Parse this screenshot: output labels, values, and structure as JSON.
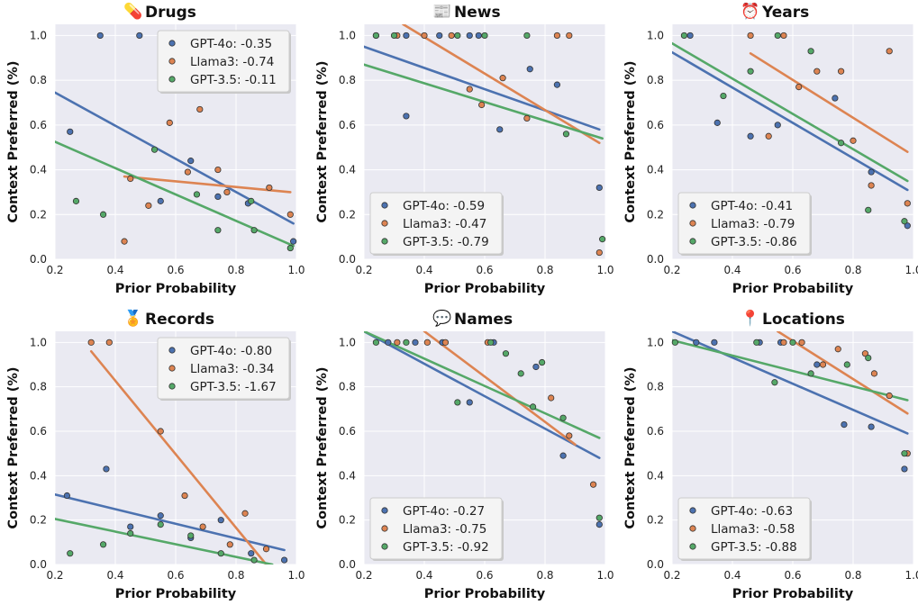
{
  "colors": {
    "gpt4o": "#4c72b0",
    "llama3": "#dd8452",
    "gpt35": "#55a868",
    "panel_bg": "#eaeaf2",
    "grid": "#ffffff"
  },
  "chart_data": [
    {
      "type": "scatter",
      "title": "Drugs",
      "title_icon": "pill-icon",
      "title_glyph": "💊",
      "xlabel": "Prior Probability",
      "ylabel": "Context Preferred (%)",
      "xlim": [
        0.2,
        1.0
      ],
      "ylim": [
        0.0,
        1.05
      ],
      "xticks": [
        "0.2",
        "0.4",
        "0.6",
        "0.8",
        "1.0"
      ],
      "yticks": [
        "0.0",
        "0.2",
        "0.4",
        "0.6",
        "0.8",
        "1.0"
      ],
      "grid": true,
      "legend_position": "top-right",
      "series": [
        {
          "name": "GPT-4o",
          "slope_label": "GPT-4o: -0.35",
          "color_key": "gpt4o",
          "points": [
            [
              0.35,
              1.0
            ],
            [
              0.48,
              1.0
            ],
            [
              0.25,
              0.57
            ],
            [
              0.65,
              0.44
            ],
            [
              0.55,
              0.26
            ],
            [
              0.74,
              0.28
            ],
            [
              0.84,
              0.25
            ],
            [
              0.99,
              0.08
            ]
          ],
          "fit": [
            [
              0.2,
              0.745
            ],
            [
              0.99,
              0.16
            ]
          ]
        },
        {
          "name": "Llama3",
          "slope_label": "Llama3: -0.74",
          "color_key": "llama3",
          "points": [
            [
              0.58,
              0.61
            ],
            [
              0.68,
              0.67
            ],
            [
              0.45,
              0.36
            ],
            [
              0.64,
              0.39
            ],
            [
              0.74,
              0.4
            ],
            [
              0.51,
              0.24
            ],
            [
              0.77,
              0.3
            ],
            [
              0.91,
              0.32
            ],
            [
              0.43,
              0.08
            ],
            [
              0.98,
              0.2
            ]
          ],
          "fit": [
            [
              0.43,
              0.37
            ],
            [
              0.98,
              0.3
            ]
          ]
        },
        {
          "name": "GPT-3.5",
          "slope_label": "GPT-3.5: -0.11",
          "color_key": "gpt35",
          "points": [
            [
              0.27,
              0.26
            ],
            [
              0.36,
              0.2
            ],
            [
              0.53,
              0.49
            ],
            [
              0.67,
              0.29
            ],
            [
              0.74,
              0.13
            ],
            [
              0.85,
              0.26
            ],
            [
              0.86,
              0.13
            ],
            [
              0.98,
              0.05
            ]
          ],
          "fit": [
            [
              0.2,
              0.525
            ],
            [
              0.99,
              0.06
            ]
          ]
        }
      ]
    },
    {
      "type": "scatter",
      "title": "News",
      "title_icon": "newspaper-icon",
      "title_glyph": "📰",
      "xlabel": "Prior Probability",
      "ylabel": "Context Preferred (%)",
      "xlim": [
        0.2,
        1.0
      ],
      "ylim": [
        0.0,
        1.05
      ],
      "xticks": [
        "0.2",
        "0.4",
        "0.6",
        "0.8",
        "1.0"
      ],
      "yticks": [
        "0.0",
        "0.2",
        "0.4",
        "0.6",
        "0.8",
        "1.0"
      ],
      "grid": true,
      "legend_position": "bottom-left",
      "series": [
        {
          "name": "GPT-4o",
          "slope_label": "GPT-4o: -0.59",
          "color_key": "gpt4o",
          "points": [
            [
              0.24,
              1.0
            ],
            [
              0.34,
              1.0
            ],
            [
              0.45,
              1.0
            ],
            [
              0.55,
              1.0
            ],
            [
              0.58,
              1.0
            ],
            [
              0.34,
              0.64
            ],
            [
              0.65,
              0.58
            ],
            [
              0.75,
              0.85
            ],
            [
              0.84,
              0.78
            ],
            [
              0.98,
              0.32
            ]
          ],
          "fit": [
            [
              0.2,
              0.95
            ],
            [
              0.98,
              0.58
            ]
          ]
        },
        {
          "name": "Llama3",
          "slope_label": "Llama3: -0.47",
          "color_key": "llama3",
          "points": [
            [
              0.31,
              1.0
            ],
            [
              0.4,
              1.0
            ],
            [
              0.49,
              1.0
            ],
            [
              0.84,
              1.0
            ],
            [
              0.88,
              1.0
            ],
            [
              0.55,
              0.76
            ],
            [
              0.66,
              0.81
            ],
            [
              0.59,
              0.69
            ],
            [
              0.74,
              0.63
            ],
            [
              0.98,
              0.03
            ]
          ],
          "fit": [
            [
              0.33,
              1.05
            ],
            [
              0.98,
              0.52
            ]
          ]
        },
        {
          "name": "GPT-3.5",
          "slope_label": "GPT-3.5: -0.79",
          "color_key": "gpt35",
          "points": [
            [
              0.24,
              1.0
            ],
            [
              0.3,
              1.0
            ],
            [
              0.51,
              1.0
            ],
            [
              0.6,
              1.0
            ],
            [
              0.74,
              1.0
            ],
            [
              0.87,
              0.56
            ],
            [
              0.99,
              0.09
            ]
          ],
          "fit": [
            [
              0.2,
              0.87
            ],
            [
              0.99,
              0.54
            ]
          ]
        }
      ]
    },
    {
      "type": "scatter",
      "title": "Years",
      "title_icon": "alarm-clock-icon",
      "title_glyph": "⏰",
      "xlabel": "Prior Probability",
      "ylabel": "Context Preferred (%)",
      "xlim": [
        0.2,
        1.0
      ],
      "ylim": [
        0.0,
        1.05
      ],
      "xticks": [
        "0.2",
        "0.4",
        "0.6",
        "0.8",
        "1.0"
      ],
      "yticks": [
        "0.0",
        "0.2",
        "0.4",
        "0.6",
        "0.8",
        "1.0"
      ],
      "grid": true,
      "legend_position": "bottom-left",
      "series": [
        {
          "name": "GPT-4o",
          "slope_label": "GPT-4o: -0.41",
          "color_key": "gpt4o",
          "points": [
            [
              0.26,
              1.0
            ],
            [
              0.35,
              0.61
            ],
            [
              0.46,
              0.55
            ],
            [
              0.55,
              0.6
            ],
            [
              0.74,
              0.72
            ],
            [
              0.86,
              0.39
            ],
            [
              0.98,
              0.15
            ]
          ],
          "fit": [
            [
              0.2,
              0.925
            ],
            [
              0.98,
              0.31
            ]
          ]
        },
        {
          "name": "Llama3",
          "slope_label": "Llama3: -0.79",
          "color_key": "llama3",
          "points": [
            [
              0.46,
              1.0
            ],
            [
              0.57,
              1.0
            ],
            [
              0.68,
              0.84
            ],
            [
              0.76,
              0.84
            ],
            [
              0.62,
              0.77
            ],
            [
              0.52,
              0.55
            ],
            [
              0.8,
              0.53
            ],
            [
              0.92,
              0.93
            ],
            [
              0.86,
              0.33
            ],
            [
              0.98,
              0.25
            ]
          ],
          "fit": [
            [
              0.46,
              0.92
            ],
            [
              0.98,
              0.48
            ]
          ]
        },
        {
          "name": "GPT-3.5",
          "slope_label": "GPT-3.5: -0.86",
          "color_key": "gpt35",
          "points": [
            [
              0.24,
              1.0
            ],
            [
              0.55,
              1.0
            ],
            [
              0.46,
              0.84
            ],
            [
              0.37,
              0.73
            ],
            [
              0.66,
              0.93
            ],
            [
              0.76,
              0.52
            ],
            [
              0.85,
              0.22
            ],
            [
              0.97,
              0.17
            ]
          ],
          "fit": [
            [
              0.2,
              0.965
            ],
            [
              0.98,
              0.35
            ]
          ]
        }
      ]
    },
    {
      "type": "scatter",
      "title": "Records",
      "title_icon": "medal-icon",
      "title_glyph": "🏅",
      "xlabel": "Prior Probability",
      "ylabel": "Context Preferred (%)",
      "xlim": [
        0.2,
        1.0
      ],
      "ylim": [
        0.0,
        1.05
      ],
      "xticks": [
        "0.2",
        "0.4",
        "0.6",
        "0.8",
        "1.0"
      ],
      "yticks": [
        "0.0",
        "0.2",
        "0.4",
        "0.6",
        "0.8",
        "1.0"
      ],
      "grid": true,
      "legend_position": "top-right",
      "series": [
        {
          "name": "GPT-4o",
          "slope_label": "GPT-4o: -0.80",
          "color_key": "gpt4o",
          "points": [
            [
              0.37,
              0.43
            ],
            [
              0.24,
              0.31
            ],
            [
              0.55,
              0.22
            ],
            [
              0.45,
              0.17
            ],
            [
              0.65,
              0.12
            ],
            [
              0.75,
              0.2
            ],
            [
              0.85,
              0.05
            ],
            [
              0.96,
              0.02
            ]
          ],
          "fit": [
            [
              0.2,
              0.315
            ],
            [
              0.96,
              0.065
            ]
          ]
        },
        {
          "name": "Llama3",
          "slope_label": "Llama3: -0.34",
          "color_key": "llama3",
          "points": [
            [
              0.32,
              1.0
            ],
            [
              0.38,
              1.0
            ],
            [
              0.55,
              0.6
            ],
            [
              0.63,
              0.31
            ],
            [
              0.69,
              0.17
            ],
            [
              0.78,
              0.09
            ],
            [
              0.83,
              0.23
            ],
            [
              0.9,
              0.07
            ]
          ],
          "fit": [
            [
              0.32,
              0.96
            ],
            [
              0.9,
              0.0
            ]
          ]
        },
        {
          "name": "GPT-3.5",
          "slope_label": "GPT-3.5: -1.67",
          "color_key": "gpt35",
          "points": [
            [
              0.25,
              0.05
            ],
            [
              0.36,
              0.09
            ],
            [
              0.45,
              0.14
            ],
            [
              0.55,
              0.18
            ],
            [
              0.65,
              0.13
            ],
            [
              0.75,
              0.05
            ],
            [
              0.86,
              0.02
            ]
          ],
          "fit": [
            [
              0.2,
              0.205
            ],
            [
              0.92,
              0.0
            ]
          ]
        }
      ]
    },
    {
      "type": "scatter",
      "title": "Names",
      "title_icon": "speech-bubble-icon",
      "title_glyph": "💬",
      "xlabel": "Prior Probability",
      "ylabel": "Context Preferred (%)",
      "xlim": [
        0.2,
        1.0
      ],
      "ylim": [
        0.0,
        1.05
      ],
      "xticks": [
        "0.2",
        "0.4",
        "0.6",
        "0.8",
        "1.0"
      ],
      "yticks": [
        "0.0",
        "0.2",
        "0.4",
        "0.6",
        "0.8",
        "1.0"
      ],
      "grid": true,
      "legend_position": "bottom-left",
      "series": [
        {
          "name": "GPT-4o",
          "slope_label": "GPT-4o: -0.27",
          "color_key": "gpt4o",
          "points": [
            [
              0.28,
              1.0
            ],
            [
              0.37,
              1.0
            ],
            [
              0.46,
              1.0
            ],
            [
              0.63,
              1.0
            ],
            [
              0.55,
              0.73
            ],
            [
              0.77,
              0.89
            ],
            [
              0.86,
              0.49
            ],
            [
              0.98,
              0.18
            ]
          ],
          "fit": [
            [
              0.2,
              1.05
            ],
            [
              0.98,
              0.48
            ]
          ]
        },
        {
          "name": "Llama3",
          "slope_label": "Llama3: -0.75",
          "color_key": "llama3",
          "points": [
            [
              0.31,
              1.0
            ],
            [
              0.41,
              1.0
            ],
            [
              0.47,
              1.0
            ],
            [
              0.61,
              1.0
            ],
            [
              0.82,
              0.75
            ],
            [
              0.88,
              0.58
            ],
            [
              0.96,
              0.36
            ]
          ],
          "fit": [
            [
              0.4,
              1.05
            ],
            [
              0.9,
              0.54
            ]
          ]
        },
        {
          "name": "GPT-3.5",
          "slope_label": "GPT-3.5: -0.92",
          "color_key": "gpt35",
          "points": [
            [
              0.24,
              1.0
            ],
            [
              0.34,
              1.0
            ],
            [
              0.62,
              1.0
            ],
            [
              0.67,
              0.95
            ],
            [
              0.72,
              0.86
            ],
            [
              0.79,
              0.91
            ],
            [
              0.51,
              0.73
            ],
            [
              0.76,
              0.71
            ],
            [
              0.86,
              0.66
            ],
            [
              0.98,
              0.21
            ]
          ],
          "fit": [
            [
              0.2,
              1.05
            ],
            [
              0.98,
              0.57
            ]
          ]
        }
      ]
    },
    {
      "type": "scatter",
      "title": "Locations",
      "title_icon": "pushpin-icon",
      "title_glyph": "📍",
      "xlabel": "Prior Probability",
      "ylabel": "Context Preferred (%)",
      "xlim": [
        0.2,
        1.0
      ],
      "ylim": [
        0.0,
        1.05
      ],
      "xticks": [
        "0.2",
        "0.4",
        "0.6",
        "0.8",
        "1.0"
      ],
      "yticks": [
        "0.0",
        "0.2",
        "0.4",
        "0.6",
        "0.8",
        "1.0"
      ],
      "grid": true,
      "legend_position": "bottom-left",
      "series": [
        {
          "name": "GPT-4o",
          "slope_label": "GPT-4o: -0.63",
          "color_key": "gpt4o",
          "points": [
            [
              0.28,
              1.0
            ],
            [
              0.34,
              1.0
            ],
            [
              0.49,
              1.0
            ],
            [
              0.56,
              1.0
            ],
            [
              0.68,
              0.9
            ],
            [
              0.77,
              0.63
            ],
            [
              0.86,
              0.62
            ],
            [
              0.97,
              0.43
            ]
          ],
          "fit": [
            [
              0.2,
              1.05
            ],
            [
              0.98,
              0.59
            ]
          ]
        },
        {
          "name": "Llama3",
          "slope_label": "Llama3: -0.58",
          "color_key": "llama3",
          "points": [
            [
              0.57,
              1.0
            ],
            [
              0.63,
              1.0
            ],
            [
              0.7,
              0.9
            ],
            [
              0.75,
              0.97
            ],
            [
              0.84,
              0.95
            ],
            [
              0.87,
              0.86
            ],
            [
              0.92,
              0.76
            ],
            [
              0.98,
              0.5
            ]
          ],
          "fit": [
            [
              0.55,
              1.05
            ],
            [
              0.98,
              0.68
            ]
          ]
        },
        {
          "name": "GPT-3.5",
          "slope_label": "GPT-3.5: -0.88",
          "color_key": "gpt35",
          "points": [
            [
              0.21,
              1.0
            ],
            [
              0.48,
              1.0
            ],
            [
              0.6,
              1.0
            ],
            [
              0.66,
              0.86
            ],
            [
              0.54,
              0.82
            ],
            [
              0.78,
              0.9
            ],
            [
              0.85,
              0.93
            ],
            [
              0.97,
              0.5
            ]
          ],
          "fit": [
            [
              0.2,
              1.01
            ],
            [
              0.98,
              0.74
            ]
          ]
        }
      ]
    }
  ]
}
